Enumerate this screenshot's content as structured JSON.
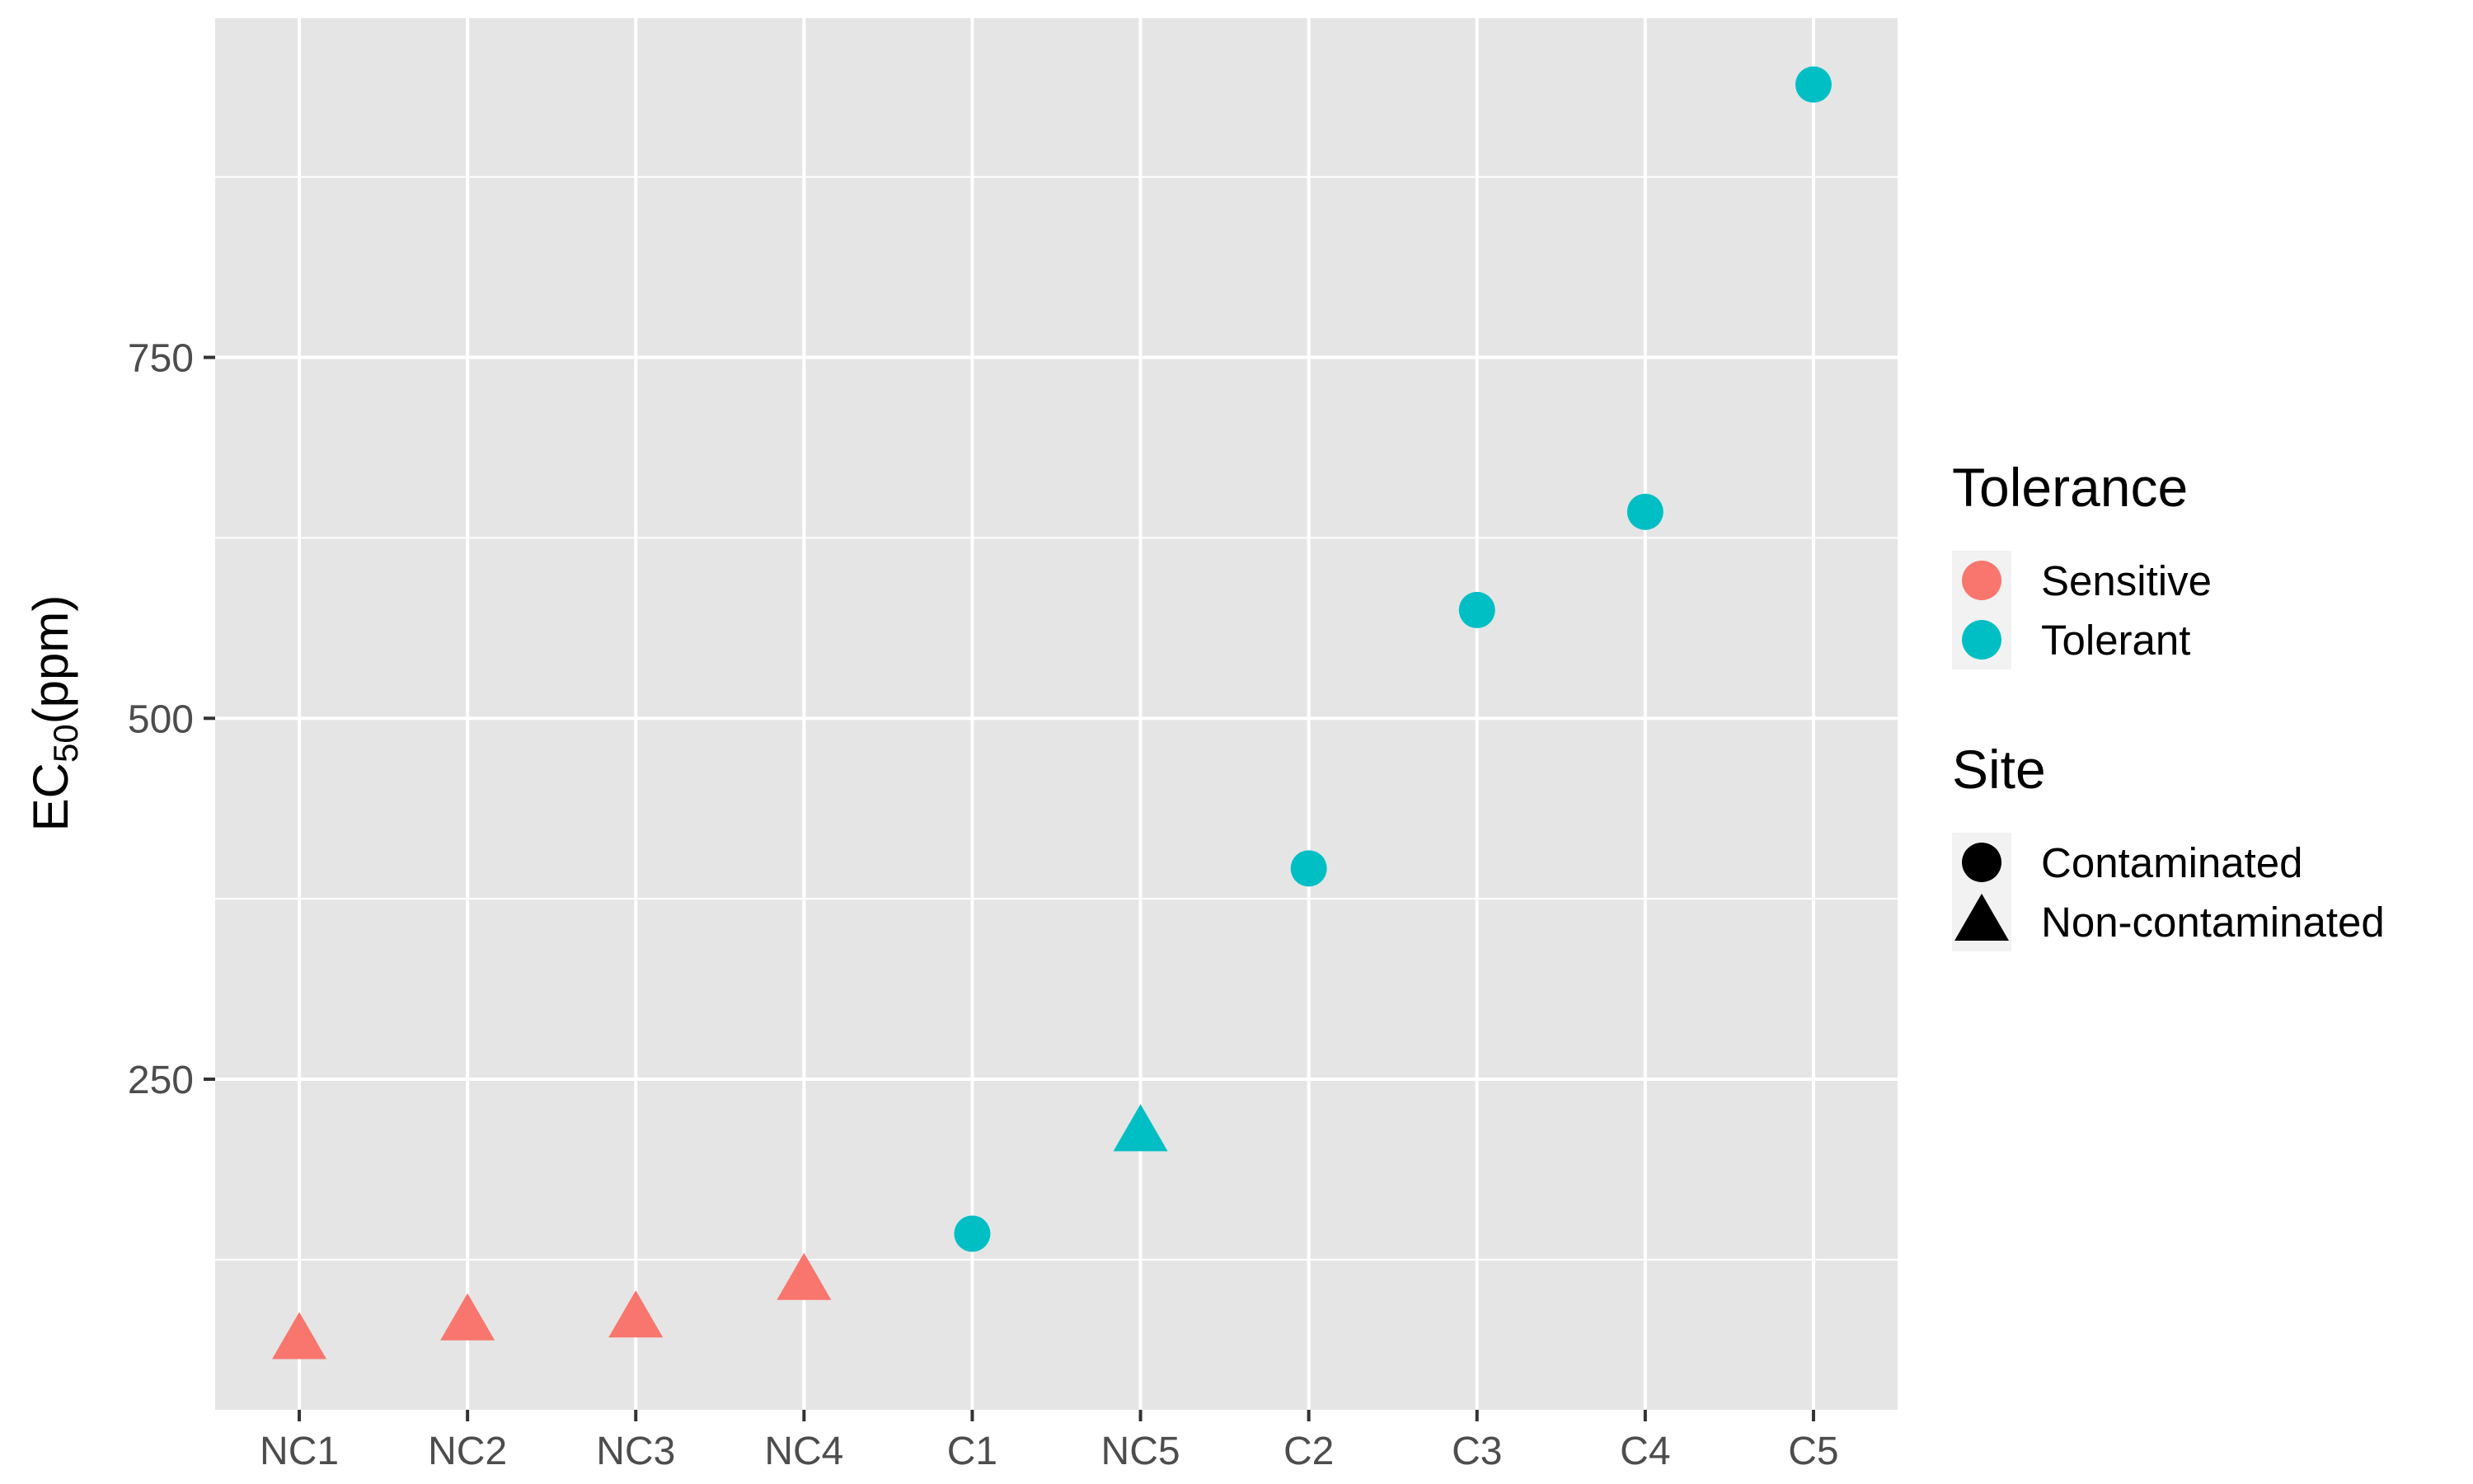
{
  "chart_data": {
    "type": "scatter",
    "categories": [
      "NC1",
      "NC2",
      "NC3",
      "NC4",
      "C1",
      "NC5",
      "C2",
      "C3",
      "C4",
      "C5"
    ],
    "points": [
      {
        "x": "NC1",
        "y": 67,
        "tolerance": "Sensitive",
        "site": "Non-contaminated"
      },
      {
        "x": "NC2",
        "y": 80,
        "tolerance": "Sensitive",
        "site": "Non-contaminated"
      },
      {
        "x": "NC3",
        "y": 82,
        "tolerance": "Sensitive",
        "site": "Non-contaminated"
      },
      {
        "x": "NC4",
        "y": 108,
        "tolerance": "Sensitive",
        "site": "Non-contaminated"
      },
      {
        "x": "C1",
        "y": 143,
        "tolerance": "Tolerant",
        "site": "Contaminated"
      },
      {
        "x": "NC5",
        "y": 211,
        "tolerance": "Tolerant",
        "site": "Non-contaminated"
      },
      {
        "x": "C2",
        "y": 396,
        "tolerance": "Tolerant",
        "site": "Contaminated"
      },
      {
        "x": "C3",
        "y": 575,
        "tolerance": "Tolerant",
        "site": "Contaminated"
      },
      {
        "x": "C4",
        "y": 643,
        "tolerance": "Tolerant",
        "site": "Contaminated"
      },
      {
        "x": "C5",
        "y": 939,
        "tolerance": "Tolerant",
        "site": "Contaminated"
      }
    ],
    "ylabel_main": "EC",
    "ylabel_sub": "50",
    "ylabel_unit": "(ppm)",
    "xlabel": "",
    "title": "",
    "ylim": [
      21,
      985
    ],
    "yticks": [
      250,
      500,
      750
    ],
    "ytick_labels": [
      "250",
      "500",
      "750"
    ],
    "grid": true,
    "legend_position": "right",
    "legends": [
      {
        "title": "Tolerance",
        "kind": "color",
        "entries": [
          {
            "label": "Sensitive",
            "color": "#F8766D"
          },
          {
            "label": "Tolerant",
            "color": "#00BFC4"
          }
        ]
      },
      {
        "title": "Site",
        "kind": "shape",
        "entries": [
          {
            "label": "Contaminated",
            "shape": "circle"
          },
          {
            "label": "Non-contaminated",
            "shape": "triangle"
          }
        ]
      }
    ],
    "colors": {
      "Sensitive": "#F8766D",
      "Tolerant": "#00BFC4",
      "panel_background": "#E5E5E5",
      "grid": "#FFFFFF"
    }
  }
}
